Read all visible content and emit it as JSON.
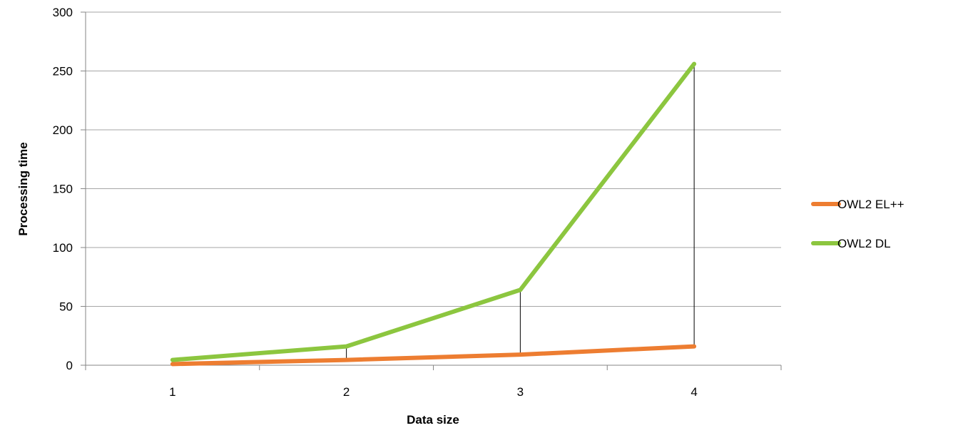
{
  "chart_data": {
    "type": "line",
    "title": "",
    "xlabel": "Data size",
    "ylabel": "Processing time",
    "categories": [
      "1",
      "2",
      "3",
      "4"
    ],
    "ylim": [
      0,
      300
    ],
    "yticks": [
      0,
      50,
      100,
      150,
      200,
      250,
      300
    ],
    "grid": true,
    "legend_position": "right",
    "drop_lines": true,
    "series": [
      {
        "name": "OWL2 EL++",
        "values": [
          1,
          4.5,
          9,
          16
        ],
        "color": "#ED7D31"
      },
      {
        "name": "OWL2 DL",
        "values": [
          4.5,
          16,
          64,
          256
        ],
        "color": "#8CC63F"
      }
    ],
    "colors": {
      "gridline": "#A6A6A6",
      "axis": "#868686",
      "drop_line": "#000000"
    }
  }
}
